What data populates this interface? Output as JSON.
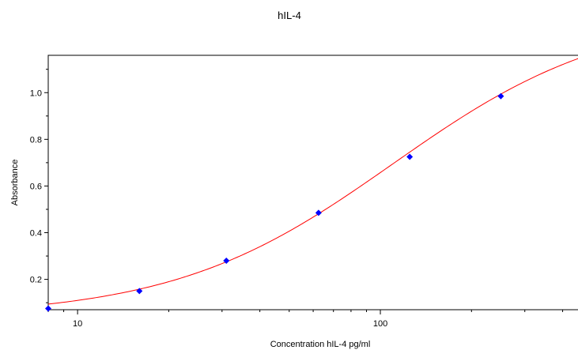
{
  "chart_data": {
    "type": "scatter",
    "title": "hIL-4",
    "xlabel": "Concentration hIL-4 pg/ml",
    "ylabel": "Absorbance",
    "x_scale": "log",
    "xlim": [
      8,
      455
    ],
    "ylim": [
      0.07,
      1.16
    ],
    "x_ticks": [
      {
        "value": 10,
        "label": "10"
      },
      {
        "value": 100,
        "label": "100"
      }
    ],
    "y_ticks": [
      {
        "value": 0.2,
        "label": "0.2"
      },
      {
        "value": 0.4,
        "label": "0.4"
      },
      {
        "value": 0.6,
        "label": "0.6"
      },
      {
        "value": 0.8,
        "label": "0.8"
      },
      {
        "value": 1.0,
        "label": "1.0"
      }
    ],
    "grid": false,
    "series": [
      {
        "color": "#0000ff",
        "marker": "diamond",
        "x": [
          8,
          16,
          31,
          62.5,
          125,
          250
        ],
        "y": [
          0.075,
          0.15,
          0.28,
          0.485,
          0.725,
          0.985
        ]
      }
    ],
    "fit_curve": {
      "color": "#ff0000",
      "model": "4PL",
      "bottom": 0.04,
      "top": 1.35,
      "ec50": 110,
      "hill": 1.2
    }
  }
}
